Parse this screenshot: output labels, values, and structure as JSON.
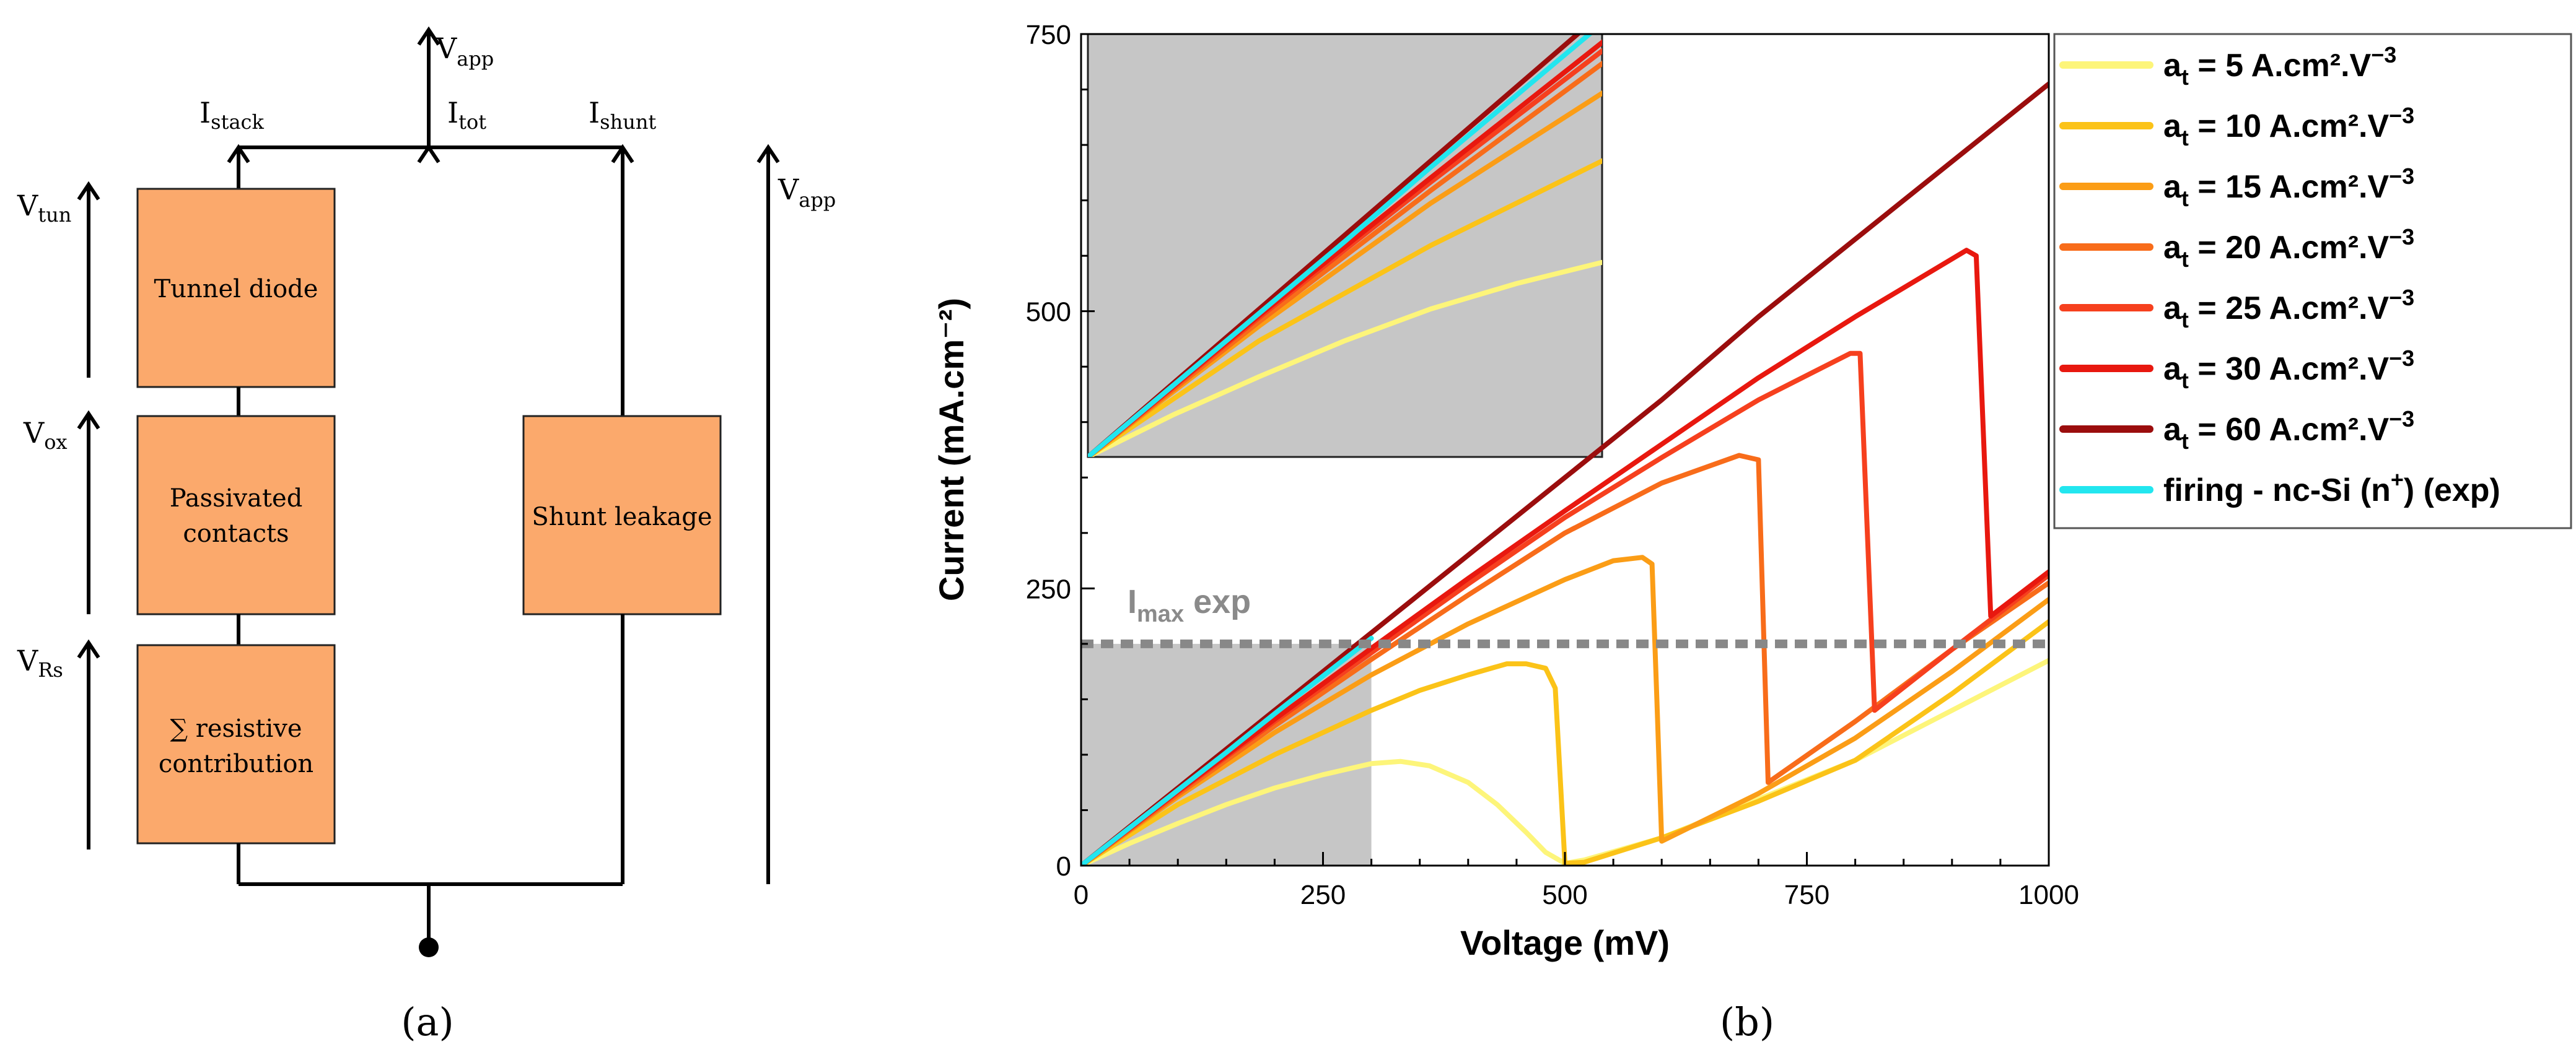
{
  "panel_a": {
    "caption": "(a)",
    "labels": {
      "v_app_top": "V",
      "v_app_top_sub": "app",
      "i_stack": "I",
      "i_stack_sub": "stack",
      "i_tot": "I",
      "i_tot_sub": "tot",
      "i_shunt": "I",
      "i_shunt_sub": "shunt",
      "v_tun": "V",
      "v_tun_sub": "tun",
      "v_ox": "V",
      "v_ox_sub": "ox",
      "v_rs": "V",
      "v_rs_sub": "Rs",
      "v_app_right": "V",
      "v_app_right_sub": "app"
    },
    "boxes": {
      "tunnel": "Tunnel diode",
      "passivated_1": "Passivated",
      "passivated_2": "contacts",
      "resistive_1": "∑ resistive",
      "resistive_2": "contribution",
      "shunt": "Shunt leakage"
    }
  },
  "panel_b": {
    "caption": "(b)",
    "imax_label": "I",
    "imax_sub": "max",
    "imax_suffix": " exp"
  },
  "chart_data": {
    "type": "line",
    "xlabel": "Voltage (mV)",
    "ylabel": "Current (mA.cm⁻²)",
    "xlim": [
      0,
      1000
    ],
    "ylim": [
      0,
      750
    ],
    "xticks": [
      0,
      250,
      500,
      750,
      1000
    ],
    "yticks": [
      0,
      250,
      500,
      750
    ],
    "imax_exp": 200,
    "shaded_region": {
      "x": [
        0,
        300
      ],
      "y": [
        0,
        200
      ]
    },
    "inset": {
      "xlim": [
        0,
        300
      ],
      "ylim": [
        0,
        200
      ]
    },
    "legend": [
      {
        "prefix": "a",
        "sub": "t",
        "value": " = 5 A.cm².V",
        "sup": "−3",
        "color": "#fdf57a"
      },
      {
        "prefix": "a",
        "sub": "t",
        "value": " = 10 A.cm².V",
        "sup": "−3",
        "color": "#fbc318"
      },
      {
        "prefix": "a",
        "sub": "t",
        "value": " = 15 A.cm².V",
        "sup": "−3",
        "color": "#fb9d16"
      },
      {
        "prefix": "a",
        "sub": "t",
        "value": " = 20 A.cm².V",
        "sup": "−3",
        "color": "#f86c1a"
      },
      {
        "prefix": "a",
        "sub": "t",
        "value": " = 25 A.cm².V",
        "sup": "−3",
        "color": "#f6401e"
      },
      {
        "prefix": "a",
        "sub": "t",
        "value": " = 30 A.cm².V",
        "sup": "−3",
        "color": "#e8180f"
      },
      {
        "prefix": "a",
        "sub": "t",
        "value": " = 60 A.cm².V",
        "sup": "−3",
        "color": "#9b0d0d"
      },
      {
        "prefix": "firing - nc-Si (n",
        "sub": "",
        "value": ") (exp)",
        "sup": "+",
        "color": "#22e6ef"
      }
    ],
    "series": [
      {
        "name": "at = 5",
        "color": "#fdf57a",
        "x": [
          0,
          50,
          100,
          150,
          200,
          250,
          300,
          330,
          360,
          400,
          430,
          460,
          480,
          500,
          520,
          600,
          700,
          800,
          900,
          1000
        ],
        "y": [
          0,
          20,
          38,
          55,
          70,
          82,
          92,
          94,
          90,
          75,
          55,
          30,
          12,
          2,
          5,
          25,
          60,
          95,
          140,
          185
        ]
      },
      {
        "name": "at = 10",
        "color": "#fbc318",
        "x": [
          0,
          100,
          200,
          300,
          350,
          400,
          440,
          460,
          480,
          490,
          500,
          520,
          600,
          700,
          800,
          900,
          1000
        ],
        "y": [
          0,
          55,
          100,
          140,
          158,
          172,
          182,
          182,
          178,
          160,
          2,
          3,
          25,
          58,
          95,
          155,
          220
        ]
      },
      {
        "name": "at = 15",
        "color": "#fb9d16",
        "x": [
          0,
          100,
          200,
          300,
          400,
          500,
          550,
          580,
          590,
          595,
          600,
          700,
          800,
          900,
          1000
        ],
        "y": [
          0,
          62,
          120,
          172,
          218,
          258,
          275,
          278,
          272,
          150,
          22,
          65,
          115,
          175,
          240
        ]
      },
      {
        "name": "at = 20",
        "color": "#f86c1a",
        "x": [
          0,
          100,
          200,
          300,
          400,
          500,
          600,
          680,
          700,
          710,
          800,
          900,
          1000
        ],
        "y": [
          0,
          64,
          126,
          186,
          244,
          300,
          345,
          370,
          366,
          75,
          130,
          195,
          255
        ]
      },
      {
        "name": "at = 25",
        "color": "#f6401e",
        "x": [
          0,
          100,
          200,
          300,
          400,
          500,
          600,
          700,
          795,
          805,
          820,
          900,
          1000
        ],
        "y": [
          0,
          66,
          130,
          192,
          254,
          314,
          368,
          420,
          462,
          462,
          140,
          195,
          262
        ]
      },
      {
        "name": "at = 30",
        "color": "#e8180f",
        "x": [
          0,
          100,
          200,
          300,
          400,
          500,
          600,
          700,
          800,
          915,
          925,
          940,
          1000
        ],
        "y": [
          0,
          67,
          132,
          196,
          259,
          320,
          380,
          440,
          495,
          555,
          550,
          225,
          265
        ]
      },
      {
        "name": "at = 60",
        "color": "#9b0d0d",
        "x": [
          0,
          100,
          200,
          300,
          400,
          500,
          600,
          700,
          800,
          900,
          1000
        ],
        "y": [
          0,
          70,
          140,
          210,
          280,
          350,
          420,
          495,
          565,
          635,
          705
        ]
      },
      {
        "name": "firing - nc-Si (n+) (exp)",
        "color": "#22e6ef",
        "x": [
          0,
          50,
          100,
          150,
          200,
          250,
          300
        ],
        "y": [
          0,
          34,
          68,
          102,
          137,
          171,
          205
        ]
      }
    ]
  }
}
